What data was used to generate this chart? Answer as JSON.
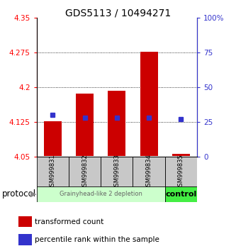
{
  "title": "GDS5113 / 10494271",
  "samples": [
    "GSM999831",
    "GSM999832",
    "GSM999833",
    "GSM999834",
    "GSM999835"
  ],
  "bar_bottom": 4.052,
  "bar_top": [
    4.127,
    4.187,
    4.192,
    4.277,
    4.057
  ],
  "percentile": [
    30,
    28,
    28,
    28,
    27
  ],
  "ylim_left": [
    4.05,
    4.35
  ],
  "ylim_right": [
    0,
    100
  ],
  "yticks_left": [
    4.05,
    4.125,
    4.2,
    4.275,
    4.35
  ],
  "yticks_right": [
    0,
    25,
    50,
    75,
    100
  ],
  "bar_color": "#cc0000",
  "blue_color": "#3333cc",
  "group1_label": "Grainyhead-like 2 depletion",
  "group2_label": "control",
  "group1_color": "#ccffcc",
  "group2_color": "#44ee44",
  "group1_n": 4,
  "group2_n": 1,
  "protocol_label": "protocol",
  "legend_red": "transformed count",
  "legend_blue": "percentile rank within the sample",
  "bar_width": 0.55,
  "sample_bg_color": "#c8c8c8",
  "title_fontsize": 10,
  "tick_fontsize": 7.5
}
